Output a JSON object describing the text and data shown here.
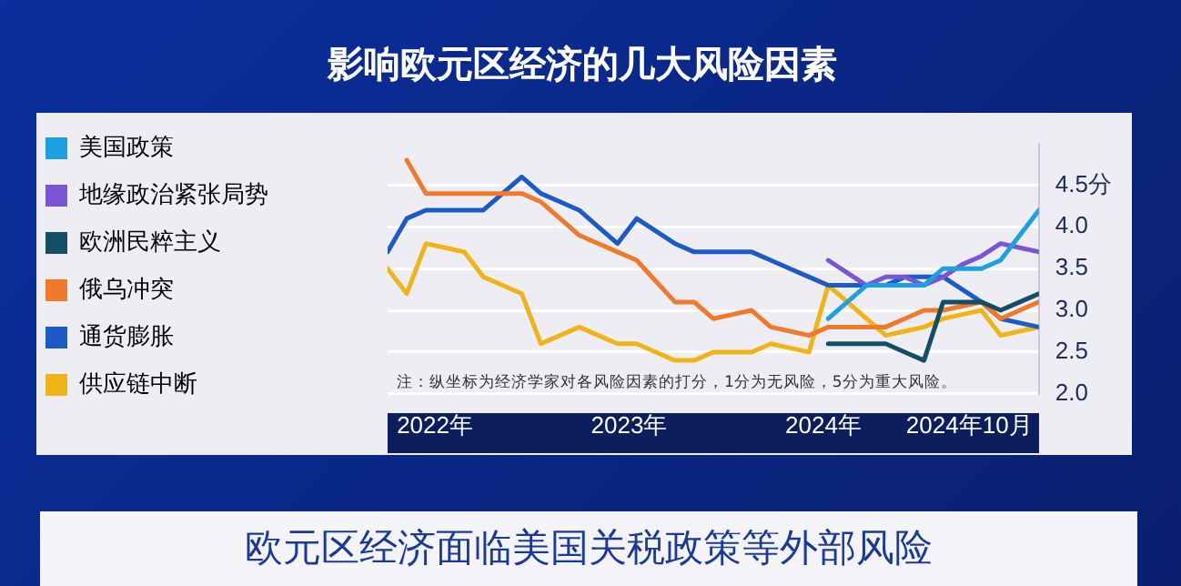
{
  "chart_data": {
    "type": "line",
    "title": "影响欧元区经济的几大风险因素",
    "x": [
      "2021-10-04",
      "2021-11-09",
      "2021-12-15",
      "2022-01-20",
      "2022-02-25",
      "2022-04-02",
      "2022-05-08",
      "2022-06-13",
      "2022-07-19",
      "2022-08-24",
      "2022-09-29",
      "2022-11-04",
      "2022-12-10",
      "2023-01-15",
      "2023-02-20",
      "2023-03-28",
      "2023-05-03",
      "2023-06-08",
      "2023-07-14",
      "2023-08-19",
      "2023-09-24",
      "2023-10-30",
      "2023-12-05",
      "2024-01-10",
      "2024-02-15",
      "2024-03-22",
      "2024-04-27",
      "2024-06-02",
      "2024-07-08",
      "2024-08-13",
      "2024-09-18",
      "2024-10-24",
      "2024-11-29",
      "2025-01-04",
      "2025-02-09"
    ],
    "series": [
      {
        "name": "美国政策",
        "color": "#1ba1e2",
        "values": [
          null,
          null,
          null,
          null,
          null,
          null,
          null,
          null,
          null,
          null,
          null,
          null,
          null,
          null,
          null,
          null,
          null,
          null,
          null,
          null,
          null,
          null,
          null,
          2.9,
          3.1,
          3.3,
          3.3,
          3.3,
          3.3,
          3.5,
          3.5,
          3.5,
          3.6,
          3.9,
          4.2
        ]
      },
      {
        "name": "地缘政治紧张局势",
        "color": "#7b55d6",
        "values": [
          null,
          null,
          null,
          null,
          null,
          null,
          null,
          null,
          null,
          null,
          null,
          null,
          null,
          null,
          null,
          null,
          null,
          null,
          null,
          null,
          null,
          null,
          null,
          3.6,
          3.45,
          3.3,
          3.4,
          3.4,
          3.3,
          3.4,
          3.55,
          3.65,
          3.8,
          3.75,
          3.7
        ]
      },
      {
        "name": "欧洲民粹主义",
        "color": "#124e66",
        "values": [
          null,
          null,
          null,
          null,
          null,
          null,
          null,
          null,
          null,
          null,
          null,
          null,
          null,
          null,
          null,
          null,
          null,
          null,
          null,
          null,
          null,
          null,
          null,
          2.6,
          2.6,
          2.6,
          2.6,
          2.5,
          2.4,
          3.1,
          3.1,
          3.1,
          3.0,
          3.1,
          3.2
        ]
      },
      {
        "name": "俄乌冲突",
        "color": "#f07a2a",
        "values": [
          null,
          4.8,
          4.4,
          4.4,
          4.4,
          4.4,
          4.4,
          4.4,
          4.3,
          4.1,
          3.9,
          3.8,
          3.7,
          3.6,
          3.35,
          3.1,
          3.1,
          2.9,
          2.95,
          3.0,
          2.8,
          2.75,
          2.7,
          2.8,
          2.8,
          2.8,
          2.8,
          2.9,
          3.0,
          3.0,
          3.05,
          3.1,
          2.9,
          3.0,
          3.1
        ]
      },
      {
        "name": "通货膨胀",
        "color": "#1a5bc8",
        "values": [
          3.7,
          4.1,
          4.2,
          4.2,
          4.2,
          4.2,
          4.4,
          4.6,
          4.4,
          4.3,
          4.2,
          4.0,
          3.8,
          4.1,
          3.95,
          3.8,
          3.7,
          3.7,
          3.7,
          3.7,
          3.6,
          3.5,
          3.4,
          3.3,
          3.3,
          3.3,
          3.3,
          3.4,
          3.4,
          3.4,
          3.25,
          3.1,
          2.9,
          2.85,
          2.8
        ]
      },
      {
        "name": "供应链中断",
        "color": "#f0b419",
        "values": [
          3.5,
          3.2,
          3.8,
          3.75,
          3.7,
          3.4,
          3.3,
          3.2,
          2.6,
          2.7,
          2.8,
          2.7,
          2.6,
          2.6,
          2.5,
          2.4,
          2.4,
          2.5,
          2.5,
          2.5,
          2.6,
          2.55,
          2.5,
          3.3,
          3.1,
          2.9,
          2.7,
          2.75,
          2.8,
          2.9,
          2.95,
          3.0,
          2.7,
          2.75,
          2.8
        ]
      }
    ],
    "xlim": [
      "2021-10-04",
      "2025-02-09"
    ],
    "xticks": [
      {
        "value": "2022-01-01",
        "label": "2022年"
      },
      {
        "value": "2023-01-01",
        "label": "2023年"
      },
      {
        "value": "2024-01-01",
        "label": "2024年"
      },
      {
        "value": "2024-10-01",
        "label": "2024年10月"
      }
    ],
    "ylim": [
      2,
      5
    ],
    "yticks": [
      {
        "value": 2,
        "label": "2.0"
      },
      2.5,
      {
        "value": 3,
        "label": "3.0"
      },
      3.5,
      {
        "value": 4,
        "label": "4.0"
      },
      {
        "value": 4.5,
        "label": "4.5分"
      }
    ],
    "grid": "y",
    "legend": "left",
    "marker": "none",
    "line_style": "solid",
    "annotations": [
      "注：纵坐标为经济学家对各风险因素的打分，1分为无风险，5分为重大风险。",
      "欧元区经济面临美国关税政策等外部风险"
    ]
  }
}
